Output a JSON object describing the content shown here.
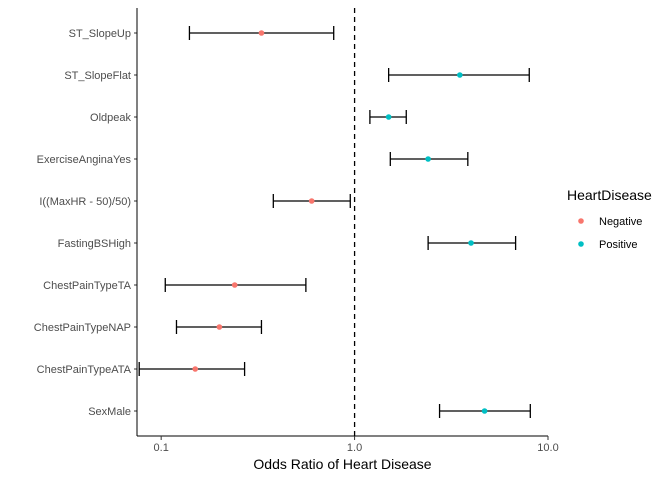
{
  "chart_data": {
    "type": "forest",
    "title": "",
    "xlabel": "Odds Ratio of Heart Disease",
    "ylabel": "",
    "x_scale": "log10",
    "xlim": [
      0.075,
      10.0
    ],
    "x_ticks": [
      {
        "value": 0.1,
        "label": "0.1"
      },
      {
        "value": 1.0,
        "label": "1.0"
      },
      {
        "value": 10.0,
        "label": "10.0"
      }
    ],
    "reference_line": 1.0,
    "legend": {
      "title": "HeartDisease",
      "position": "right",
      "entries": [
        {
          "label": "Negative",
          "color": "#F8766D"
        },
        {
          "label": "Positive",
          "color": "#00BFC4"
        }
      ]
    },
    "points": [
      {
        "label": "ST_SlopeUp",
        "estimate": 0.33,
        "lower": 0.14,
        "upper": 0.78,
        "group": "Negative"
      },
      {
        "label": "ST_SlopeFlat",
        "estimate": 3.5,
        "lower": 1.5,
        "upper": 8.0,
        "group": "Positive"
      },
      {
        "label": "Oldpeak",
        "estimate": 1.5,
        "lower": 1.2,
        "upper": 1.85,
        "group": "Positive"
      },
      {
        "label": "ExerciseAnginaYes",
        "estimate": 2.4,
        "lower": 1.53,
        "upper": 3.85,
        "group": "Positive"
      },
      {
        "label": "I((MaxHR - 50)/50)",
        "estimate": 0.6,
        "lower": 0.38,
        "upper": 0.95,
        "group": "Negative"
      },
      {
        "label": "FastingBSHigh",
        "estimate": 4.0,
        "lower": 2.4,
        "upper": 6.8,
        "group": "Positive"
      },
      {
        "label": "ChestPainTypeTA",
        "estimate": 0.24,
        "lower": 0.105,
        "upper": 0.56,
        "group": "Negative"
      },
      {
        "label": "ChestPainTypeNAP",
        "estimate": 0.2,
        "lower": 0.12,
        "upper": 0.33,
        "group": "Negative"
      },
      {
        "label": "ChestPainTypeATA",
        "estimate": 0.15,
        "lower": 0.077,
        "upper": 0.27,
        "group": "Negative"
      },
      {
        "label": "SexMale",
        "estimate": 4.7,
        "lower": 2.75,
        "upper": 8.1,
        "group": "Positive"
      }
    ]
  }
}
